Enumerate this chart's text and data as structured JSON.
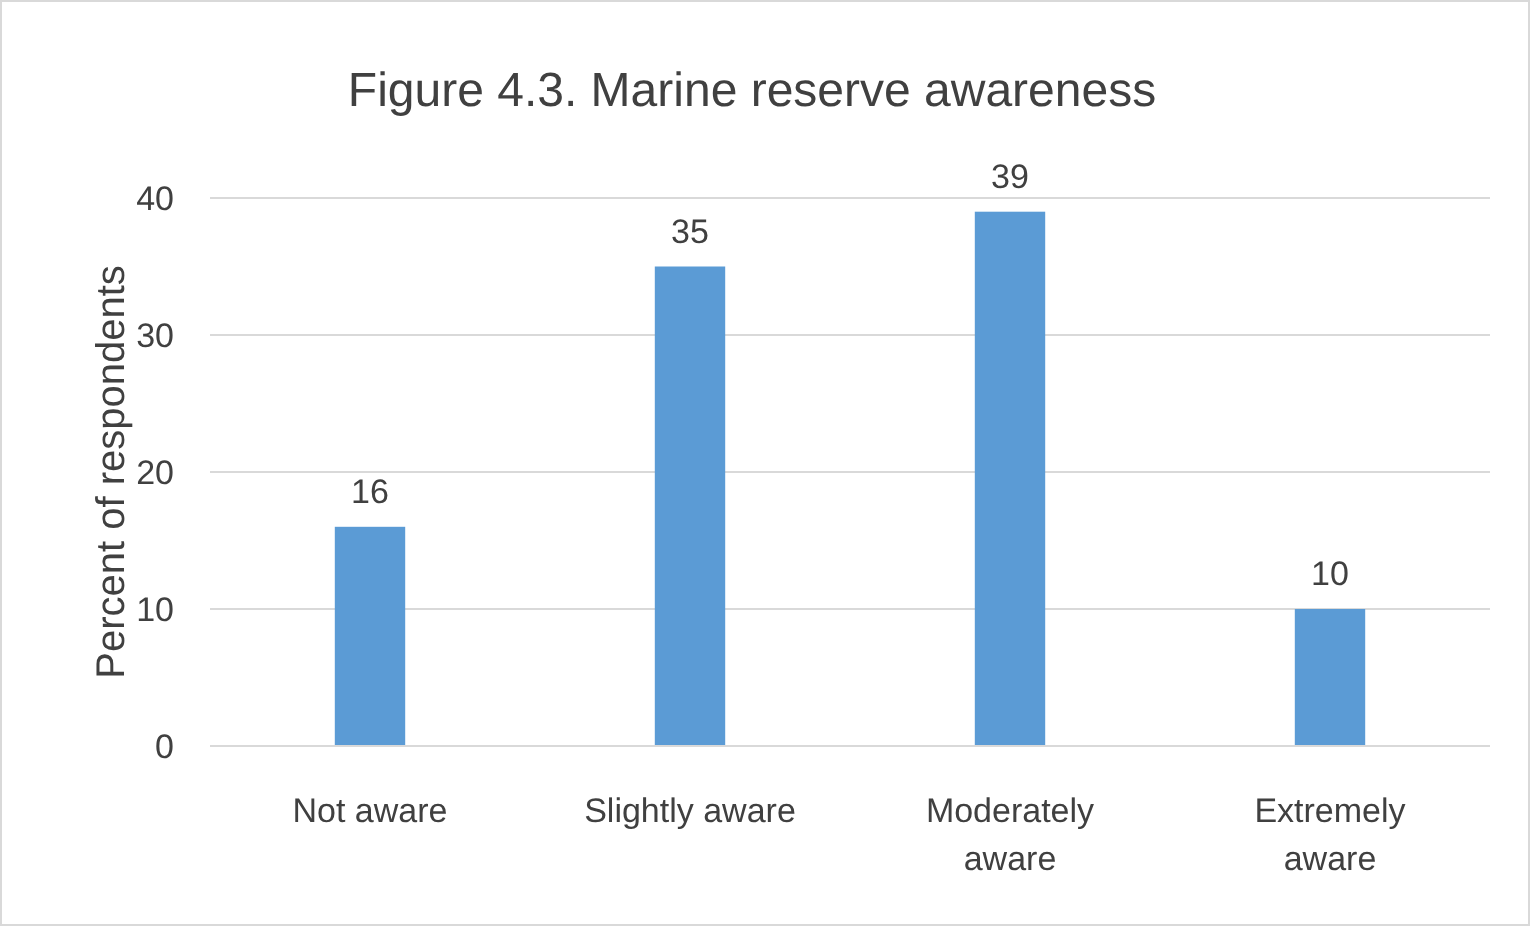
{
  "chart_data": {
    "type": "bar",
    "title": "Figure 4.3. Marine reserve awareness",
    "ylabel": "Percent of respondents",
    "categories": [
      "Not aware",
      "Slightly aware",
      "Moderately aware",
      "Extremely aware"
    ],
    "values": [
      16,
      35,
      39,
      10
    ],
    "color": "#5b9bd5",
    "data_labels": true,
    "ylim": [
      0,
      40
    ],
    "yticks": [
      0,
      10,
      20,
      30,
      40
    ],
    "grid": "y"
  }
}
